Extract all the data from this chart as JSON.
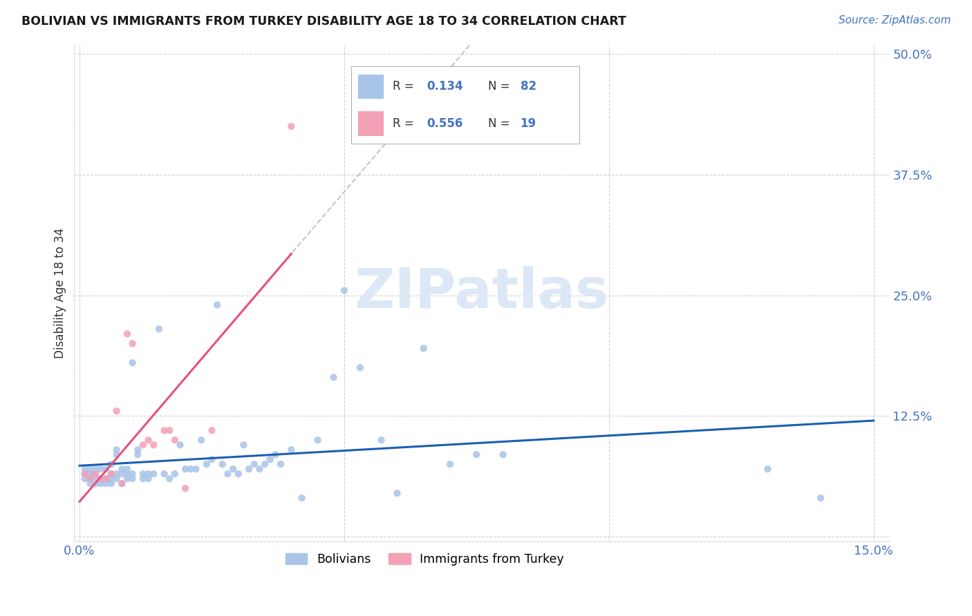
{
  "title": "BOLIVIAN VS IMMIGRANTS FROM TURKEY DISABILITY AGE 18 TO 34 CORRELATION CHART",
  "source": "Source: ZipAtlas.com",
  "ylabel_label": "Disability Age 18 to 34",
  "x_min": 0.0,
  "x_max": 0.15,
  "y_min": 0.0,
  "y_max": 0.5,
  "bolivian_color": "#a8c4e8",
  "turkey_color": "#f4a0b5",
  "trend_bolivian_color": "#1a5fb4",
  "trend_turkey_color": "#e8507a",
  "dashed_line_color": "#c8b8d0",
  "watermark_color": "#dce8f5",
  "legend_r1": "0.134",
  "legend_n1": "82",
  "legend_r2": "0.556",
  "legend_n2": "19",
  "bolivians_label": "Bolivians",
  "turkey_label": "Immigrants from Turkey",
  "bolivian_x": [
    0.001,
    0.001,
    0.001,
    0.002,
    0.002,
    0.002,
    0.002,
    0.002,
    0.003,
    0.003,
    0.003,
    0.003,
    0.004,
    0.004,
    0.004,
    0.004,
    0.005,
    0.005,
    0.005,
    0.005,
    0.006,
    0.006,
    0.006,
    0.006,
    0.007,
    0.007,
    0.007,
    0.007,
    0.008,
    0.008,
    0.008,
    0.009,
    0.009,
    0.009,
    0.01,
    0.01,
    0.01,
    0.011,
    0.011,
    0.012,
    0.012,
    0.013,
    0.013,
    0.014,
    0.015,
    0.016,
    0.017,
    0.018,
    0.019,
    0.02,
    0.021,
    0.022,
    0.023,
    0.024,
    0.025,
    0.026,
    0.027,
    0.028,
    0.029,
    0.03,
    0.031,
    0.032,
    0.033,
    0.034,
    0.035,
    0.036,
    0.037,
    0.038,
    0.04,
    0.042,
    0.045,
    0.048,
    0.05,
    0.053,
    0.057,
    0.06,
    0.065,
    0.07,
    0.075,
    0.08,
    0.13,
    0.14
  ],
  "bolivian_y": [
    0.065,
    0.07,
    0.06,
    0.065,
    0.07,
    0.06,
    0.055,
    0.065,
    0.06,
    0.07,
    0.055,
    0.065,
    0.06,
    0.07,
    0.055,
    0.06,
    0.06,
    0.07,
    0.055,
    0.06,
    0.065,
    0.055,
    0.06,
    0.075,
    0.065,
    0.06,
    0.09,
    0.085,
    0.065,
    0.07,
    0.055,
    0.065,
    0.07,
    0.06,
    0.18,
    0.065,
    0.06,
    0.09,
    0.085,
    0.065,
    0.06,
    0.065,
    0.06,
    0.065,
    0.215,
    0.065,
    0.06,
    0.065,
    0.095,
    0.07,
    0.07,
    0.07,
    0.1,
    0.075,
    0.08,
    0.24,
    0.075,
    0.065,
    0.07,
    0.065,
    0.095,
    0.07,
    0.075,
    0.07,
    0.075,
    0.08,
    0.085,
    0.075,
    0.09,
    0.04,
    0.1,
    0.165,
    0.255,
    0.175,
    0.1,
    0.045,
    0.195,
    0.075,
    0.085,
    0.085,
    0.07,
    0.04
  ],
  "turkey_x": [
    0.001,
    0.002,
    0.003,
    0.004,
    0.005,
    0.006,
    0.007,
    0.008,
    0.009,
    0.01,
    0.012,
    0.013,
    0.014,
    0.016,
    0.017,
    0.018,
    0.02,
    0.025,
    0.04
  ],
  "turkey_y": [
    0.065,
    0.06,
    0.065,
    0.06,
    0.06,
    0.065,
    0.13,
    0.055,
    0.21,
    0.2,
    0.095,
    0.1,
    0.095,
    0.11,
    0.11,
    0.1,
    0.05,
    0.11,
    0.425
  ]
}
